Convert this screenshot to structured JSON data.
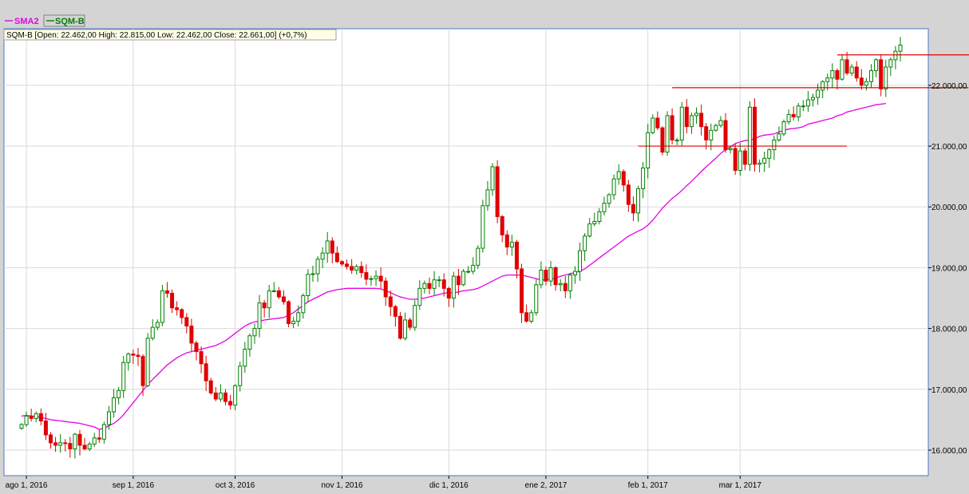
{
  "legend": [
    {
      "name": "SMA2",
      "color": "#e600e6"
    },
    {
      "name": "SQM-B",
      "color": "#008000"
    }
  ],
  "info_box": "SQM-B [Open: 22.462,00  High: 22.815,00  Low: 22.462,00  Close: 22.661,00] (+0,7%)",
  "colors": {
    "up": "#008000",
    "down": "#e00000",
    "sma": "#e600e6",
    "resistance": "#e00000",
    "grid": "#d9d9d9",
    "plot_border": "#4a78c8"
  },
  "chart_data": {
    "type": "candlestick",
    "series_name": "SQM-B",
    "x_tick_labels": [
      "ago 1, 2016",
      "sep 1, 2016",
      "oct 3, 2016",
      "nov 1, 2016",
      "dic 1, 2016",
      "ene 2, 2017",
      "feb 1, 2017",
      "mar 1, 2017"
    ],
    "x_tick_index": [
      1,
      23,
      44,
      66,
      88,
      108,
      129,
      148
    ],
    "y_tick_values": [
      16000,
      17000,
      18000,
      19000,
      20000,
      21000,
      22000
    ],
    "y_tick_labels": [
      "16.000,00",
      "17.000,00",
      "18.000,00",
      "19.000,00",
      "20.000,00",
      "21.000,00",
      "22.000,00"
    ],
    "ylim": [
      15580,
      22930
    ],
    "grid": true,
    "closes": [
      16420,
      16560,
      16520,
      16600,
      16480,
      16250,
      16120,
      16080,
      16120,
      16110,
      16020,
      16260,
      16080,
      16020,
      16100,
      16200,
      16180,
      16420,
      16630,
      16860,
      16980,
      17440,
      17580,
      17560,
      17540,
      17060,
      17840,
      18020,
      18100,
      18620,
      18580,
      18340,
      18310,
      18180,
      18040,
      17760,
      17620,
      17420,
      17140,
      16940,
      16840,
      16940,
      16800,
      16740,
      17060,
      17380,
      17660,
      17880,
      18000,
      18420,
      18340,
      18620,
      18620,
      18520,
      18440,
      18080,
      18120,
      18260,
      18540,
      18890,
      18900,
      19140,
      19240,
      19440,
      19240,
      19100,
      19060,
      19020,
      18960,
      19020,
      18920,
      18810,
      18820,
      18860,
      18780,
      18520,
      18360,
      18200,
      17840,
      18140,
      18020,
      18380,
      18660,
      18740,
      18660,
      18800,
      18800,
      18660,
      18500,
      18860,
      18720,
      18940,
      18940,
      19040,
      19320,
      20020,
      20280,
      20660,
      19840,
      19540,
      19340,
      19420,
      18980,
      18260,
      18120,
      18260,
      18720,
      18960,
      18780,
      19000,
      18720,
      18740,
      18620,
      18880,
      18940,
      19280,
      19520,
      19720,
      19760,
      19920,
      20060,
      20200,
      20460,
      20580,
      20360,
      20040,
      19900,
      20300,
      20640,
      21220,
      21460,
      21300,
      20900,
      21500,
      21100,
      21100,
      21640,
      21320,
      21500,
      21540,
      21320,
      21100,
      21260,
      21340,
      21420,
      20940,
      20960,
      20600,
      20920,
      20700,
      21640,
      20700,
      20720,
      20800,
      20940,
      21100,
      21200,
      21400,
      21520,
      21480,
      21660,
      21660,
      21760,
      21800,
      21920,
      22060,
      22120,
      22240,
      22100,
      22420,
      22200,
      22300,
      22120,
      22000,
      22060,
      22240,
      22420,
      21940,
      22300,
      22420,
      22560,
      22661
    ],
    "sma": [
      16560,
      16570,
      16560,
      16550,
      16540,
      16520,
      16500,
      16490,
      16480,
      16470,
      16460,
      16450,
      16440,
      16420,
      16400,
      16380,
      16340,
      16360,
      16400,
      16440,
      16500,
      16580,
      16680,
      16780,
      16880,
      16980,
      17080,
      17160,
      17240,
      17320,
      17400,
      17460,
      17520,
      17560,
      17600,
      17620,
      17640,
      17660,
      17680,
      17700,
      17720,
      17760,
      17800,
      17860,
      17920,
      17980,
      18040,
      18080,
      18110,
      18120,
      18140,
      18150,
      18160,
      18170,
      18180,
      18220,
      18260,
      18320,
      18380,
      18440,
      18480,
      18520,
      18560,
      18600,
      18620,
      18640,
      18650,
      18660,
      18660,
      18660,
      18660,
      18660,
      18660,
      18660,
      18650,
      18620,
      18590,
      18550,
      18520,
      18500,
      18480,
      18480,
      18490,
      18500,
      18520,
      18540,
      18560,
      18580,
      18590,
      18590,
      18600,
      18620,
      18630,
      18640,
      18660,
      18700,
      18740,
      18780,
      18820,
      18860,
      18880,
      18880,
      18880,
      18880,
      18860,
      18840,
      18820,
      18800,
      18800,
      18810,
      18830,
      18860,
      18880,
      18900,
      18920,
      18940,
      18980,
      19040,
      19100,
      19160,
      19220,
      19280,
      19340,
      19400,
      19460,
      19520,
      19560,
      19600,
      19640,
      19700,
      19780,
      19880,
      19980,
      20060,
      20140,
      20200,
      20270,
      20350,
      20420,
      20500,
      20580,
      20660,
      20730,
      20800,
      20880,
      20940,
      20990,
      21040,
      21070,
      21090,
      21100,
      21120,
      21160,
      21180,
      21190,
      21200,
      21230,
      21260,
      21280,
      21290,
      21300,
      21320,
      21360,
      21380,
      21400,
      21420,
      21440,
      21460,
      21500,
      21520,
      21560,
      21580,
      21600,
      21620,
      21640,
      21660,
      21680,
      21690,
      21700
    ]
  },
  "resistance_lines": [
    {
      "price": 21000,
      "from_index": 127,
      "to_index": 170
    },
    {
      "price": 21960,
      "from_index": 134,
      "to_index": 195
    },
    {
      "price": 22500,
      "from_index": 168,
      "to_index": 203
    }
  ]
}
